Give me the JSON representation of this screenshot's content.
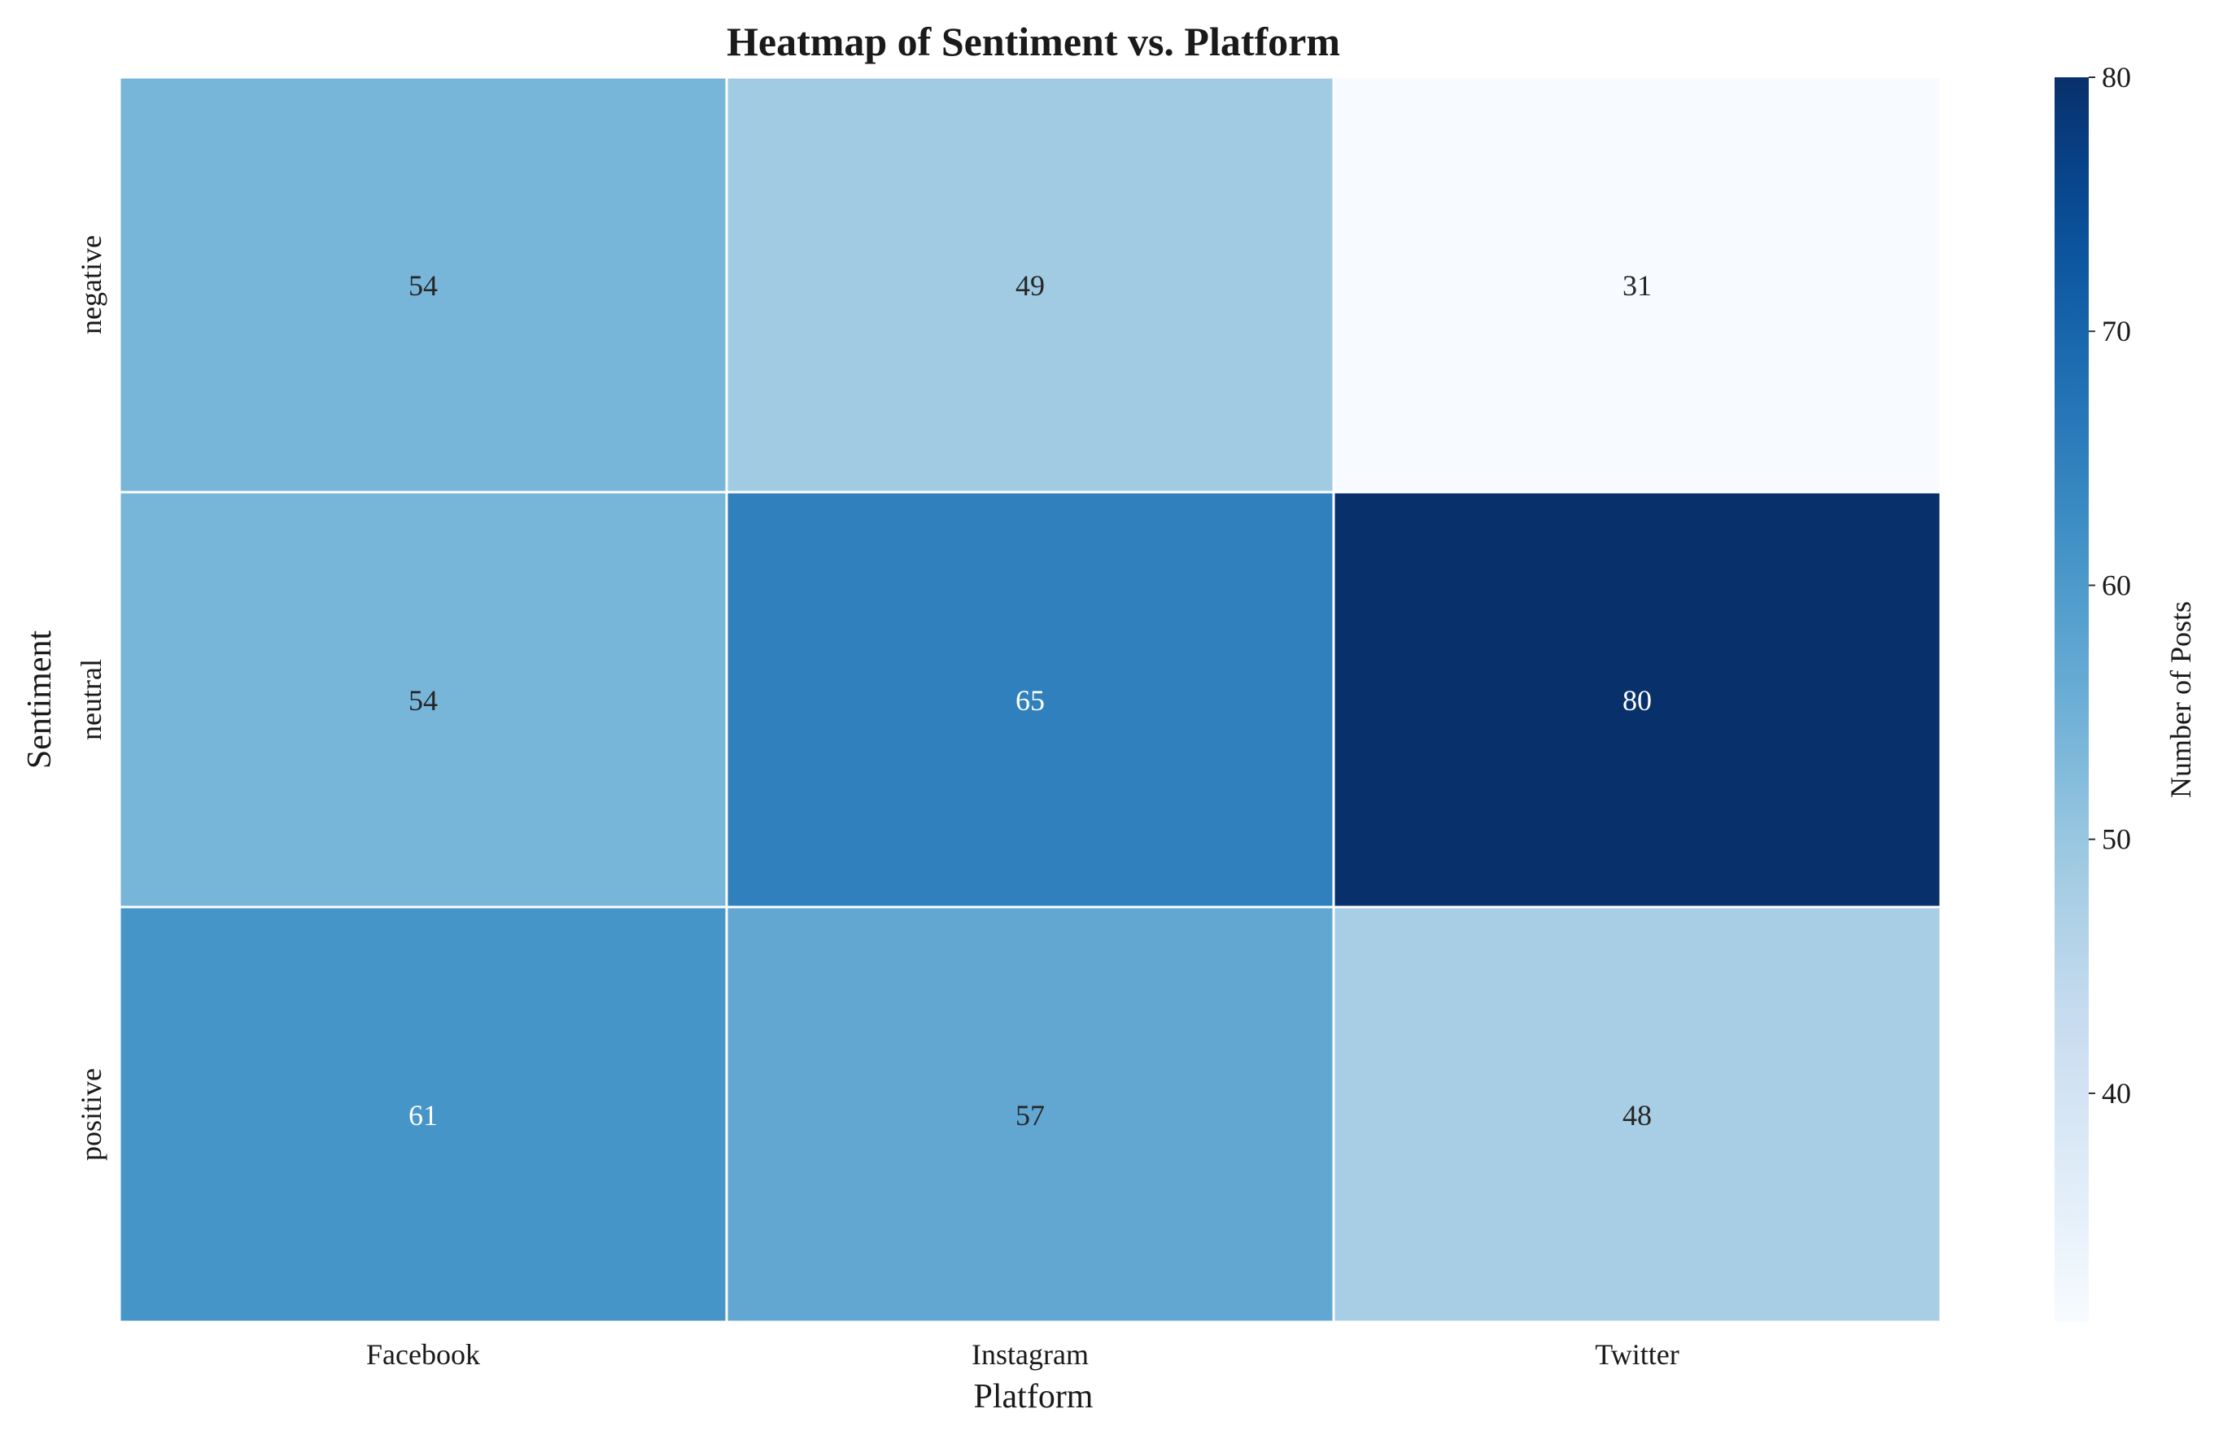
{
  "chart_data": {
    "type": "heatmap",
    "title": "Heatmap of Sentiment vs. Platform",
    "xlabel": "Platform",
    "ylabel": "Sentiment",
    "x_categories": [
      "Facebook",
      "Instagram",
      "Twitter"
    ],
    "y_categories": [
      "negative",
      "neutral",
      "positive"
    ],
    "values": [
      [
        54,
        49,
        31
      ],
      [
        54,
        65,
        80
      ],
      [
        61,
        57,
        48
      ]
    ],
    "colorbar": {
      "label": "Number of Posts",
      "range": [
        31,
        80
      ],
      "ticks": [
        40,
        50,
        60,
        70,
        80
      ],
      "colormap": "Blues",
      "low_color": "#f7fbff",
      "high_color": "#08306b"
    },
    "grid": false
  }
}
